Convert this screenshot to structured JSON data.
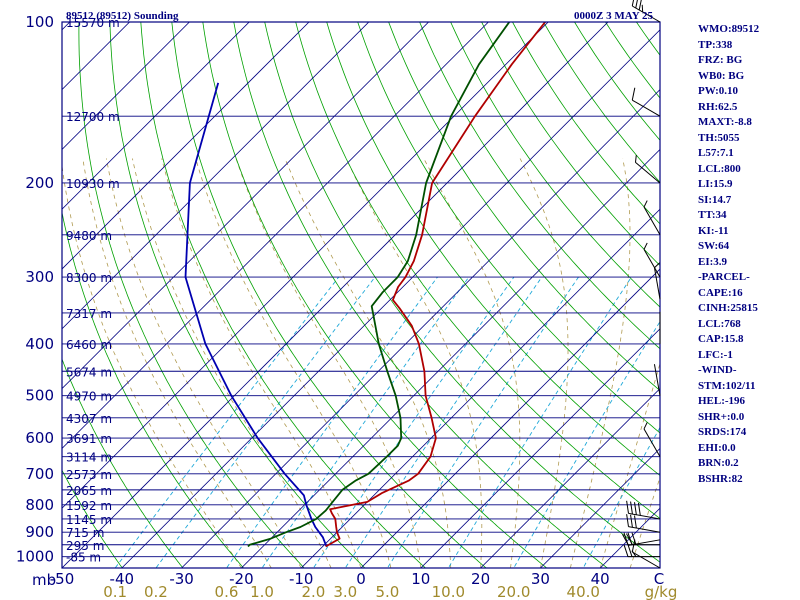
{
  "header": {
    "station": "89512 (89512) Sounding",
    "time": "0000Z  3 MAY 25"
  },
  "colors": {
    "frame": "#000080",
    "isobar": "#000080",
    "isotherm": "#000080",
    "dry_adiabat": "#00a000",
    "moist_adiabat": "#b09a50",
    "mixing_ratio": "#1fa8d8",
    "temperature": "#b00000",
    "dewpoint": "#005000",
    "parcel": "#0000b0",
    "wind": "#000000",
    "mixing_label": "#a08a2c"
  },
  "stats": [
    "WMO:89512",
    "TP:338",
    "FRZ: BG",
    "WB0: BG",
    "PW:0.10",
    "RH:62.5",
    "MAXT:-8.8",
    "TH:5055",
    "L57:7.1",
    "LCL:800",
    "LI:15.9",
    "SI:14.7",
    "TT:34",
    "KI:-11",
    "SW:64",
    "EI:3.9",
    "-PARCEL-",
    "CAPE:16",
    "CINH:25815",
    "LCL:768",
    "CAP:15.8",
    "LFC:-1",
    "-WIND-",
    "STM:102/11",
    "HEL:-196",
    "SHR+:0.0",
    "SRDS:174",
    "EHI:0.0",
    "BRN:0.2",
    "BSHR:82"
  ],
  "chart_data": {
    "type": "skew-t",
    "pressure_axis_label": "mb",
    "pressure_levels": [
      100,
      200,
      300,
      400,
      500,
      600,
      700,
      800,
      900,
      1000
    ],
    "height_labels": [
      {
        "p": 100,
        "label": "15570 m"
      },
      {
        "p": 150,
        "label": "12700 m"
      },
      {
        "p": 200,
        "label": "10930 m"
      },
      {
        "p": 250,
        "label": "9480 m"
      },
      {
        "p": 300,
        "label": "8300 m"
      },
      {
        "p": 350,
        "label": "7317 m"
      },
      {
        "p": 400,
        "label": "6460 m"
      },
      {
        "p": 450,
        "label": "5674 m"
      },
      {
        "p": 500,
        "label": "4970 m"
      },
      {
        "p": 550,
        "label": "4307 m"
      },
      {
        "p": 600,
        "label": "3691 m"
      },
      {
        "p": 650,
        "label": "3114 m"
      },
      {
        "p": 700,
        "label": "2573 m"
      },
      {
        "p": 750,
        "label": "2065 m"
      },
      {
        "p": 800,
        "label": "1592 m"
      },
      {
        "p": 850,
        "label": "1145 m"
      },
      {
        "p": 900,
        "label": "715 m"
      },
      {
        "p": 950,
        "label": "295 m"
      },
      {
        "p": 1000,
        "label": "-85 m"
      }
    ],
    "temperature_ticks": [
      -50,
      -40,
      -30,
      -20,
      -10,
      0,
      10,
      20,
      30,
      40
    ],
    "temperature_axis_label": "C",
    "mixing_ratio_ticks": [
      "0.1",
      "0.2",
      "0.6",
      "1.0",
      "2.0",
      "3.0",
      "5.0",
      "10.0",
      "20.0",
      "40.0"
    ],
    "mixing_ratio_values": [
      0.1,
      0.2,
      0.6,
      1.0,
      2.0,
      3.0,
      5.0,
      10.0,
      20.0,
      40.0
    ],
    "mixing_ratio_unit": "g/kg",
    "pressure_range": [
      1050,
      100
    ],
    "temperature_range_at_base": [
      -50,
      50
    ],
    "temperature_profile": [
      [
        957,
        -9.5
      ],
      [
        925,
        -8.5
      ],
      [
        900,
        -10
      ],
      [
        880,
        -11
      ],
      [
        850,
        -12.5
      ],
      [
        830,
        -14
      ],
      [
        815,
        -15
      ],
      [
        790,
        -10
      ],
      [
        760,
        -9.0
      ],
      [
        720,
        -6.6
      ],
      [
        700,
        -6.2
      ],
      [
        650,
        -7.0
      ],
      [
        600,
        -9.2
      ],
      [
        550,
        -13.3
      ],
      [
        500,
        -18
      ],
      [
        450,
        -22.3
      ],
      [
        400,
        -27.8
      ],
      [
        370,
        -32
      ],
      [
        343,
        -37
      ],
      [
        331,
        -39.5
      ],
      [
        313,
        -40.8
      ],
      [
        300,
        -41.2
      ],
      [
        280,
        -42.5
      ],
      [
        250,
        -45.5
      ],
      [
        200,
        -52.5
      ],
      [
        150,
        -56.5
      ],
      [
        120,
        -59
      ],
      [
        100,
        -60.5
      ]
    ],
    "dewpoint_profile": [
      [
        957,
        -22.5
      ],
      [
        950,
        -22.5
      ],
      [
        925,
        -20
      ],
      [
        900,
        -18.5
      ],
      [
        880,
        -17
      ],
      [
        850,
        -15.7
      ],
      [
        820,
        -15.5
      ],
      [
        790,
        -15.8
      ],
      [
        750,
        -16.2
      ],
      [
        720,
        -15.5
      ],
      [
        700,
        -14.5
      ],
      [
        650,
        -14.3
      ],
      [
        620,
        -14.3
      ],
      [
        600,
        -15
      ],
      [
        550,
        -18.5
      ],
      [
        500,
        -23
      ],
      [
        450,
        -28.5
      ],
      [
        400,
        -34.5
      ],
      [
        340,
        -42
      ],
      [
        320,
        -42.5
      ],
      [
        300,
        -42.5
      ],
      [
        280,
        -43.5
      ],
      [
        250,
        -46.5
      ],
      [
        200,
        -53.5
      ],
      [
        150,
        -60.5
      ],
      [
        120,
        -64.5
      ],
      [
        100,
        -66.5
      ]
    ],
    "parcel_profile": [
      [
        955,
        -9.5
      ],
      [
        920,
        -11.5
      ],
      [
        880,
        -14.5
      ],
      [
        850,
        -16.5
      ],
      [
        800,
        -19.7
      ],
      [
        768,
        -21.7
      ],
      [
        700,
        -28.5
      ],
      [
        600,
        -39
      ],
      [
        500,
        -50.5
      ],
      [
        400,
        -63.5
      ],
      [
        300,
        -78
      ],
      [
        200,
        -93
      ],
      [
        130,
        -105
      ]
    ],
    "wind_barbs": [
      {
        "p": 100,
        "dir": 300,
        "speed": 35
      },
      {
        "p": 150,
        "dir": 300,
        "speed": 10
      },
      {
        "p": 200,
        "dir": 310,
        "speed": 5
      },
      {
        "p": 250,
        "dir": 330,
        "speed": 5
      },
      {
        "p": 300,
        "dir": 330,
        "speed": 5
      },
      {
        "p": 330,
        "dir": 350,
        "speed": 5
      },
      {
        "p": 400,
        "dir": 360,
        "speed": 0
      },
      {
        "p": 500,
        "dir": 350,
        "speed": 0
      },
      {
        "p": 650,
        "dir": 330,
        "speed": 5
      },
      {
        "p": 850,
        "dir": 280,
        "speed": 40
      },
      {
        "p": 900,
        "dir": 280,
        "speed": 30
      },
      {
        "p": 930,
        "dir": 260,
        "speed": 20
      },
      {
        "p": 950,
        "dir": 270,
        "speed": 30
      },
      {
        "p": 1000,
        "dir": 270,
        "speed": 25
      },
      {
        "p": 1050,
        "dir": 300,
        "speed": 10
      }
    ]
  }
}
